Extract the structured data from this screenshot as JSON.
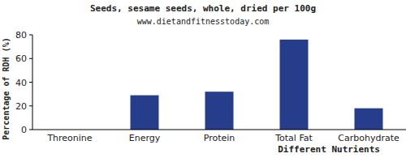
{
  "chart_data": {
    "type": "bar",
    "title": "Seeds, sesame seeds, whole, dried per 100g",
    "subtitle": "www.dietandfitnesstoday.com",
    "x_label": "Different Nutrients",
    "y_label": "Percentage of RDH (%)",
    "categories": [
      "Threonine",
      "Energy",
      "Protein",
      "Total Fat",
      "Carbohydrate"
    ],
    "values": [
      0,
      29,
      32,
      76,
      18
    ],
    "color": "#263d8c",
    "ylim": [
      0,
      80
    ],
    "yticks": [
      0,
      20,
      40,
      60,
      80
    ],
    "grid": false
  }
}
